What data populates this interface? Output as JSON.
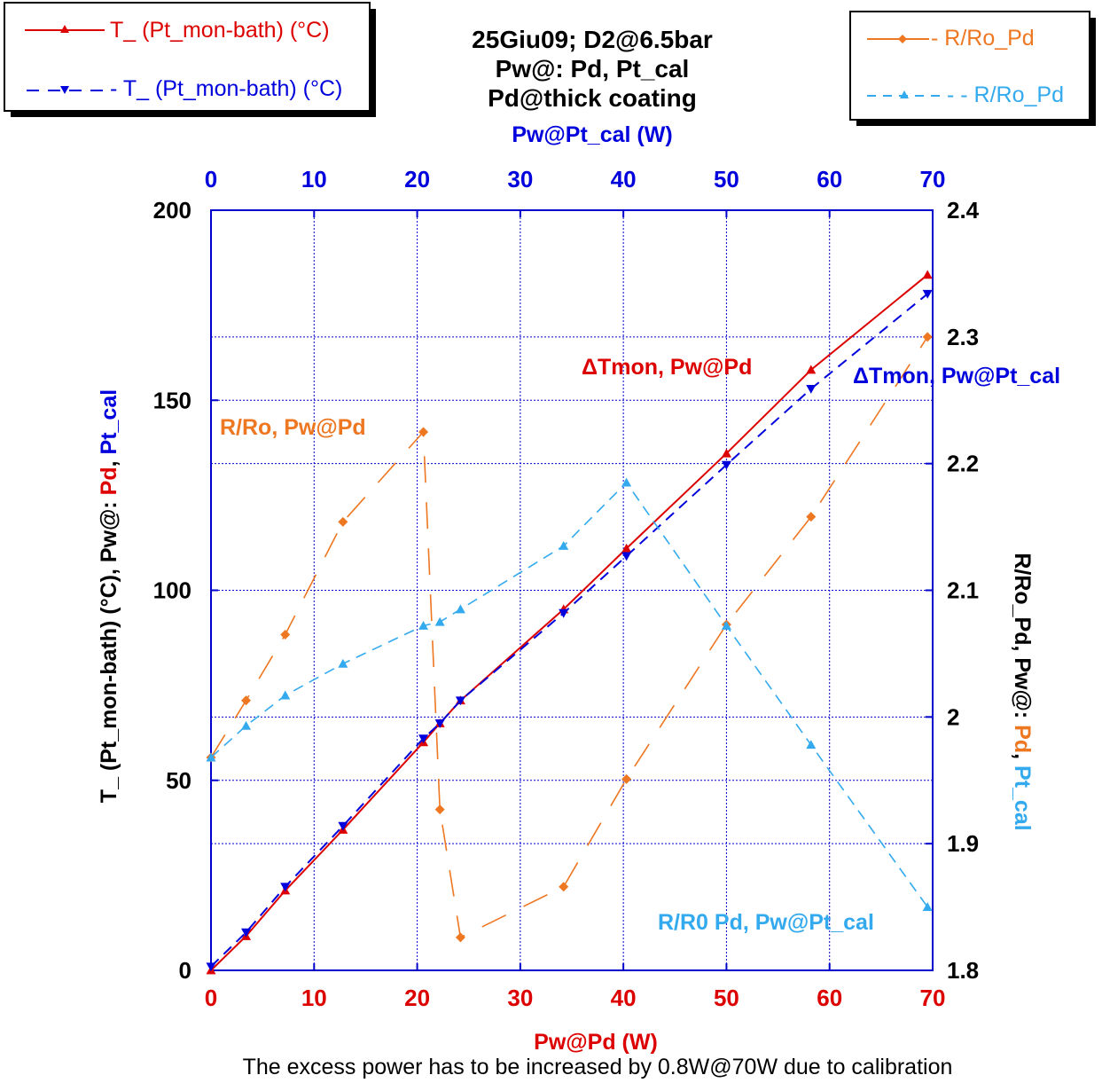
{
  "chart_data": {
    "type": "line",
    "title": [
      "25Giu09; D2@6.5bar",
      "Pw@: Pd, Pt_cal",
      "Pd@thick coating"
    ],
    "xlabel_bottom": "Pw@Pd (W)",
    "xlabel_top": "Pw@Pt_cal (W)",
    "ylabel_left": {
      "prefix": "T_ (Pt_mon-bath) (°C), Pw@: ",
      "part1": "Pd",
      "sep": ", ",
      "part2": "Pt_cal"
    },
    "ylabel_right": {
      "prefix": "R/Ro_Pd, Pw@: ",
      "part1": "Pd",
      "sep": ", ",
      "part2": "Pt_cal"
    },
    "footnote": "The excess power has to be increased by 0.8W@70W due to calibration",
    "x_range": [
      0,
      70
    ],
    "y_left_range": [
      0,
      200
    ],
    "y_right_range": [
      1.8,
      2.4
    ],
    "x_ticks": [
      "0",
      "10",
      "20",
      "30",
      "40",
      "50",
      "60",
      "70"
    ],
    "y_left_ticks": [
      "0",
      "50",
      "100",
      "150",
      "200"
    ],
    "y_right_ticks": [
      "1.8",
      "1.9",
      "2",
      "2.1",
      "2.2",
      "2.3",
      "2.4"
    ],
    "grid": true,
    "series": [
      {
        "name": "T_ (Pt_mon-bath) (°C)",
        "axis": "left",
        "color": "#dd0000",
        "marker": "triangle-up",
        "line": "solid",
        "x": [
          0,
          3.4,
          7.2,
          12.8,
          20.6,
          22.2,
          24.2,
          34.2,
          40.3,
          50.0,
          58.2,
          69.5
        ],
        "y": [
          0,
          9,
          21,
          37,
          60,
          65,
          71,
          95,
          111,
          136,
          158,
          183
        ]
      },
      {
        "name": "- T_ (Pt_mon-bath) (°C)",
        "axis": "left",
        "color": "#0000dd",
        "marker": "triangle-down",
        "line": "dashed",
        "x": [
          0,
          3.4,
          7.2,
          12.8,
          20.6,
          22.2,
          24.2,
          34.2,
          40.3,
          50.0,
          58.2,
          69.5
        ],
        "y": [
          1,
          10,
          22,
          38,
          61,
          65,
          71,
          94,
          109,
          133,
          153,
          178
        ]
      },
      {
        "name": "- R/Ro_Pd",
        "axis": "right",
        "color": "#ee7722",
        "marker": "diamond",
        "line": "dash-long",
        "x": [
          0,
          3.4,
          7.2,
          12.8,
          20.6,
          22.2,
          24.2,
          34.2,
          40.3,
          50.0,
          58.2,
          69.5
        ],
        "y": [
          1.968,
          2.013,
          2.065,
          2.154,
          2.225,
          1.927,
          1.826,
          1.866,
          1.951,
          2.073,
          2.158,
          2.3
        ]
      },
      {
        "name": "- - R/Ro_Pd",
        "axis": "right",
        "color": "#33aaee",
        "marker": "triangle-up",
        "line": "dashed",
        "x": [
          0,
          3.4,
          7.2,
          12.8,
          20.6,
          22.2,
          24.2,
          34.2,
          40.3,
          50.0,
          58.2,
          69.5
        ],
        "y": [
          1.968,
          1.993,
          2.017,
          2.042,
          2.072,
          2.075,
          2.085,
          2.135,
          2.185,
          2.072,
          1.978,
          1.85
        ]
      }
    ],
    "legend_left": [
      "T_ (Pt_mon-bath) (°C)",
      "- T_ (Pt_mon-bath) (°C)"
    ],
    "legend_right": [
      "- R/Ro_Pd",
      "- - R/Ro_Pd"
    ],
    "annotations": [
      {
        "text": "ΔTmon, Pw@Pd",
        "color": "#dd0000"
      },
      {
        "text": "ΔTmon, Pw@Pt_cal",
        "color": "#0000dd"
      },
      {
        "text": "R/Ro, Pw@Pd",
        "color": "#ee7722"
      },
      {
        "text": "R/R0 Pd, Pw@Pt_cal",
        "color": "#33aaee"
      }
    ]
  }
}
